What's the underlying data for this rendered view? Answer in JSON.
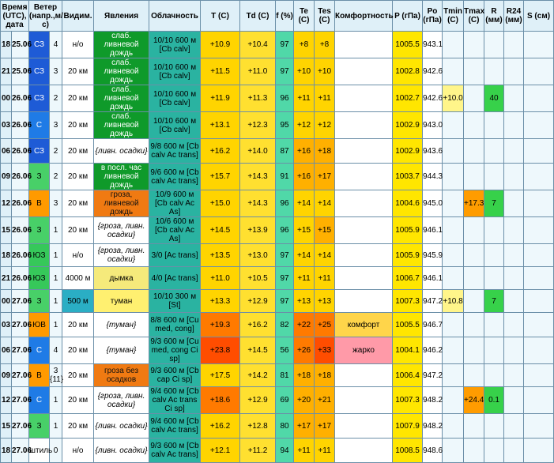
{
  "headers": {
    "time": "Время (UTC), дата",
    "wind": "Ветер (напр.,м/с)",
    "vis": "Видим.",
    "phen": "Явления",
    "cloud": "Облачность",
    "t": "T (С)",
    "td": "Td (С)",
    "f": "f (%)",
    "te": "Te (С)",
    "tes": "Tes (С)",
    "komf": "Комфортность",
    "p": "P (гПа)",
    "po": "Po (гПа)",
    "tmin": "Tmin (С)",
    "tmax": "Tmax (С)",
    "r": "R (мм)",
    "r24": "R24 (мм)",
    "s": "S (см)"
  },
  "rows": [
    {
      "h": "18",
      "d": "25.06",
      "wdir": "СЗ",
      "wsp": "4",
      "vis": "н/о",
      "phen": "слаб. ливневой дождь",
      "cloud": "10/10 600 м [Cb calv]",
      "t": "+10.9",
      "td": "+10.4",
      "f": "97",
      "te": "+8",
      "tes": "+8",
      "komf": "",
      "p": "1005.5",
      "po": "943.1",
      "tmin": "",
      "tmax": "",
      "r": "",
      "r24": "",
      "s": ""
    },
    {
      "h": "21",
      "d": "25.06",
      "wdir": "СЗ",
      "wsp": "3",
      "vis": "20 км",
      "phen": "слаб. ливневой дождь",
      "cloud": "10/10 600 м [Cb calv]",
      "t": "+11.5",
      "td": "+11.0",
      "f": "97",
      "te": "+10",
      "tes": "+10",
      "komf": "",
      "p": "1002.8",
      "po": "942.6",
      "tmin": "",
      "tmax": "",
      "r": "",
      "r24": "",
      "s": ""
    },
    {
      "h": "00",
      "d": "26.06",
      "wdir": "СЗ",
      "wsp": "2",
      "vis": "20 км",
      "phen": "слаб. ливневой дождь",
      "cloud": "10/10 600 м [Cb calv]",
      "t": "+11.9",
      "td": "+11.3",
      "f": "96",
      "te": "+11",
      "tes": "+11",
      "komf": "",
      "p": "1002.7",
      "po": "942.6",
      "tmin": "+10.0",
      "tmax": "",
      "r": "40",
      "r24": "",
      "s": ""
    },
    {
      "h": "03",
      "d": "26.06",
      "wdir": "С",
      "wsp": "3",
      "vis": "20 км",
      "phen": "слаб. ливневой дождь",
      "cloud": "10/10 600 м [Cb calv]",
      "t": "+13.1",
      "td": "+12.3",
      "f": "95",
      "te": "+12",
      "tes": "+12",
      "komf": "",
      "p": "1002.9",
      "po": "943.0",
      "tmin": "",
      "tmax": "",
      "r": "",
      "r24": "",
      "s": ""
    },
    {
      "h": "06",
      "d": "26.06",
      "wdir": "СЗ",
      "wsp": "2",
      "vis": "20 км",
      "phen": "{ливн. осадки}",
      "cloud": "9/8 600 м [Cb calv Ac trans]",
      "t": "+16.2",
      "td": "+14.0",
      "f": "87",
      "te": "+16",
      "tes": "+18",
      "komf": "",
      "p": "1002.9",
      "po": "943.6",
      "tmin": "",
      "tmax": "",
      "r": "",
      "r24": "",
      "s": ""
    },
    {
      "h": "09",
      "d": "26.06",
      "wdir": "З",
      "wsp": "2",
      "vis": "20 км",
      "phen": "в посл. час ливневой дождь",
      "cloud": "9/6 600 м [Cb calv Ac trans]",
      "t": "+15.7",
      "td": "+14.3",
      "f": "91",
      "te": "+16",
      "tes": "+17",
      "komf": "",
      "p": "1003.7",
      "po": "944.3",
      "tmin": "",
      "tmax": "",
      "r": "",
      "r24": "",
      "s": ""
    },
    {
      "h": "12",
      "d": "26.06",
      "wdir": "В",
      "wsp": "3",
      "vis": "20 км",
      "phen": "гроза, ливневой дождь",
      "cloud": "10/9 600 м [Cb calv Ac As]",
      "t": "+15.0",
      "td": "+14.3",
      "f": "96",
      "te": "+14",
      "tes": "+14",
      "komf": "",
      "p": "1004.6",
      "po": "945.0",
      "tmin": "",
      "tmax": "+17.3",
      "r": "7",
      "r24": "",
      "s": ""
    },
    {
      "h": "15",
      "d": "26.06",
      "wdir": "З",
      "wsp": "1",
      "vis": "20 км",
      "phen": "{гроза, ливн. осадки}",
      "cloud": "10/6 600 м [Cb calv Ac As]",
      "t": "+14.5",
      "td": "+13.9",
      "f": "96",
      "te": "+15",
      "tes": "+15",
      "komf": "",
      "p": "1005.9",
      "po": "946.1",
      "tmin": "",
      "tmax": "",
      "r": "",
      "r24": "",
      "s": ""
    },
    {
      "h": "18",
      "d": "26.06",
      "wdir": "ЮЗ",
      "wsp": "1",
      "vis": "н/о",
      "phen": "{гроза, ливн. осадки}",
      "cloud": "3/0 [Ac trans]",
      "t": "+13.5",
      "td": "+13.0",
      "f": "97",
      "te": "+14",
      "tes": "+14",
      "komf": "",
      "p": "1005.9",
      "po": "945.9",
      "tmin": "",
      "tmax": "",
      "r": "",
      "r24": "",
      "s": ""
    },
    {
      "h": "21",
      "d": "26.06",
      "wdir": "ЮЗ",
      "wsp": "1",
      "vis": "4000 м",
      "phen": "дымка",
      "cloud": "4/0 [Ac trans]",
      "t": "+11.0",
      "td": "+10.5",
      "f": "97",
      "te": "+11",
      "tes": "+11",
      "komf": "",
      "p": "1006.7",
      "po": "946.1",
      "tmin": "",
      "tmax": "",
      "r": "",
      "r24": "",
      "s": ""
    },
    {
      "h": "00",
      "d": "27.06",
      "wdir": "З",
      "wsp": "1",
      "vis": "500 м",
      "phen": "туман",
      "cloud": "10/10 300 м [St]",
      "t": "+13.3",
      "td": "+12.9",
      "f": "97",
      "te": "+13",
      "tes": "+13",
      "komf": "",
      "p": "1007.3",
      "po": "947.2",
      "tmin": "+10.8",
      "tmax": "",
      "r": "7",
      "r24": "",
      "s": ""
    },
    {
      "h": "03",
      "d": "27.06",
      "wdir": "ЮВ",
      "wsp": "1",
      "vis": "20 км",
      "phen": "{туман}",
      "cloud": "8/8 600 м [Cu med, cong]",
      "t": "+19.3",
      "td": "+16.2",
      "f": "82",
      "te": "+22",
      "tes": "+25",
      "komf": "комфорт",
      "p": "1005.5",
      "po": "946.7",
      "tmin": "",
      "tmax": "",
      "r": "",
      "r24": "",
      "s": ""
    },
    {
      "h": "06",
      "d": "27.06",
      "wdir": "С",
      "wsp": "4",
      "vis": "20 км",
      "phen": "{туман}",
      "cloud": "9/3 600 м [Cu med, cong Ci sp]",
      "t": "+23.8",
      "td": "+14.5",
      "f": "56",
      "te": "+26",
      "tes": "+33",
      "komf": "жарко",
      "p": "1004.1",
      "po": "946.2",
      "tmin": "",
      "tmax": "",
      "r": "",
      "r24": "",
      "s": ""
    },
    {
      "h": "09",
      "d": "27.06",
      "wdir": "В",
      "wsp": "3 {11}",
      "vis": "20 км",
      "phen": "гроза без осадков",
      "cloud": "9/3 600 м [Cb cap Ci sp]",
      "t": "+17.5",
      "td": "+14.2",
      "f": "81",
      "te": "+18",
      "tes": "+18",
      "komf": "",
      "p": "1006.4",
      "po": "947.2",
      "tmin": "",
      "tmax": "",
      "r": "",
      "r24": "",
      "s": ""
    },
    {
      "h": "12",
      "d": "27.06",
      "wdir": "С",
      "wsp": "1",
      "vis": "20 км",
      "phen": "{гроза, ливн. осадки}",
      "cloud": "9/4 600 м [Cb calv Ac trans Ci sp]",
      "t": "+18.6",
      "td": "+12.9",
      "f": "69",
      "te": "+20",
      "tes": "+21",
      "komf": "",
      "p": "1007.3",
      "po": "948.2",
      "tmin": "",
      "tmax": "+24.4",
      "r": "0.1",
      "r24": "",
      "s": ""
    },
    {
      "h": "15",
      "d": "27.06",
      "wdir": "З",
      "wsp": "1",
      "vis": "20 км",
      "phen": "{ливн. осадки}",
      "cloud": "9/4 600 м [Cb calv Ac trans]",
      "t": "+16.2",
      "td": "+12.8",
      "f": "80",
      "te": "+17",
      "tes": "+17",
      "komf": "",
      "p": "1007.9",
      "po": "948.2",
      "tmin": "",
      "tmax": "",
      "r": "",
      "r24": "",
      "s": ""
    },
    {
      "h": "18",
      "d": "27.06",
      "wdir": "штиль",
      "wsp": "0",
      "vis": "н/о",
      "phen": "{ливн. осадки}",
      "cloud": "9/3 600 м [Cb calv Ac trans]",
      "t": "+12.1",
      "td": "+11.2",
      "f": "94",
      "te": "+11",
      "tes": "+11",
      "komf": "",
      "p": "1008.5",
      "po": "948.6",
      "tmin": "",
      "tmax": "",
      "r": "",
      "r24": "",
      "s": ""
    }
  ]
}
